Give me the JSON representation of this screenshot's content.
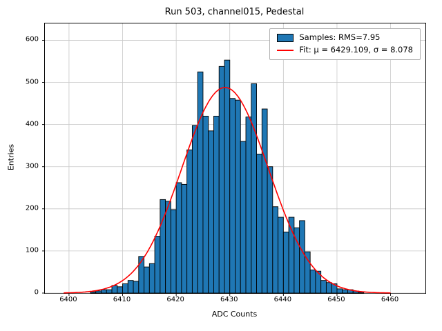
{
  "chart_data": {
    "type": "bar",
    "subtype": "histogram",
    "title": "Run 503, channel015, Pedestal",
    "xlabel": "ADC Counts",
    "ylabel": "Entries",
    "xlim": [
      6395.5,
      6466.5
    ],
    "ylim": [
      0,
      640
    ],
    "xticks": [
      6400,
      6410,
      6420,
      6430,
      6440,
      6450,
      6460
    ],
    "yticks": [
      0,
      100,
      200,
      300,
      400,
      500,
      600
    ],
    "grid": true,
    "legend_position": "upper right",
    "bin_start": 6404,
    "bin_width": 1,
    "counts": [
      3,
      5,
      8,
      8,
      18,
      15,
      22,
      30,
      28,
      87,
      62,
      70,
      135,
      222,
      218,
      198,
      262,
      258,
      340,
      398,
      525,
      420,
      385,
      420,
      538,
      553,
      462,
      458,
      360,
      418,
      497,
      330,
      437,
      300,
      205,
      180,
      145,
      180,
      155,
      172,
      98,
      55,
      52,
      30,
      25,
      22,
      10,
      8,
      8,
      5,
      2
    ],
    "rms": 7.95,
    "fit": {
      "mu": 6429.109,
      "sigma": 8.078,
      "amplitude": 488,
      "range": [
        6399,
        6460
      ]
    },
    "legend": [
      "Samples: RMS=7.95",
      "Fit: μ = 6429.109, σ = 8.078"
    ],
    "colors": {
      "bar": "#1f77b4",
      "bar_edge": "#000000",
      "fit": "#ff0000",
      "grid": "#c8c8c8",
      "axes": "#000000"
    }
  }
}
